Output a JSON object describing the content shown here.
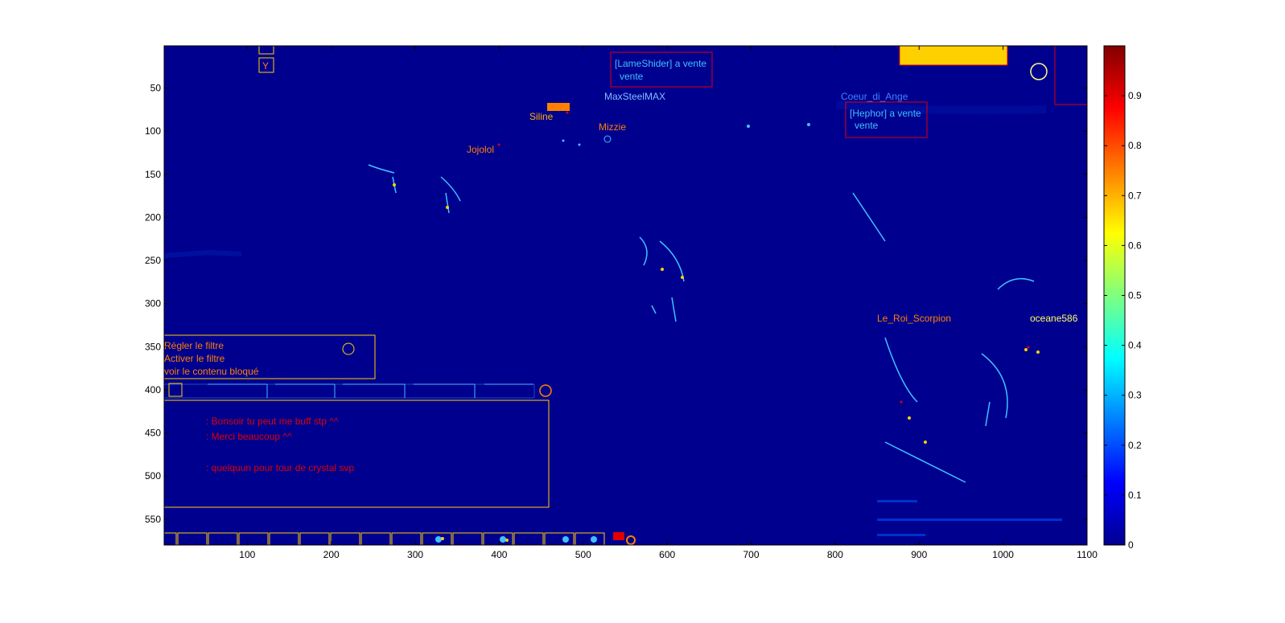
{
  "chart_data": {
    "type": "heatmap",
    "title": "",
    "xlabel": "",
    "ylabel": "",
    "xlim": [
      1,
      1100
    ],
    "ylim": [
      580,
      1
    ],
    "y_direction": "reverse",
    "x_ticks": [
      100,
      200,
      300,
      400,
      500,
      600,
      700,
      800,
      900,
      1000,
      1100
    ],
    "y_ticks": [
      50,
      100,
      150,
      200,
      250,
      300,
      350,
      400,
      450,
      500,
      550
    ],
    "colorbar": {
      "colormap": "jet",
      "range": [
        0,
        1
      ],
      "ticks": [
        0,
        0.1,
        0.2,
        0.3,
        0.4,
        0.5,
        0.6,
        0.7,
        0.8,
        0.9
      ]
    },
    "background_value": 0.03,
    "grid": false,
    "legend": "none"
  },
  "image_text": {
    "names": [
      "MaxSteelMAX",
      "Siline",
      "Mizzie",
      "Jojolol",
      "Coeur_di_Ange",
      "Le_Roi_Scorpion",
      "oceane586"
    ],
    "shops": [
      "[LameShider] a vente",
      "vente",
      "[Hephor] a vente",
      "vente"
    ],
    "filter_menu": [
      "Régler le filtre",
      "Activer le filtre",
      "voir le contenu bloqué"
    ],
    "chat_lines": [
      ": Bonsoir tu peut me buff stp ^^",
      ": Merci beaucoup ^^",
      ": quelquun pour tour de crystal svp"
    ]
  },
  "colors": {
    "background": "#00008f",
    "yellow": "#ffd000",
    "orange": "#ff8000",
    "red": "#e00000",
    "cyan": "#40c0ff",
    "light_blue": "#7fbfff"
  }
}
